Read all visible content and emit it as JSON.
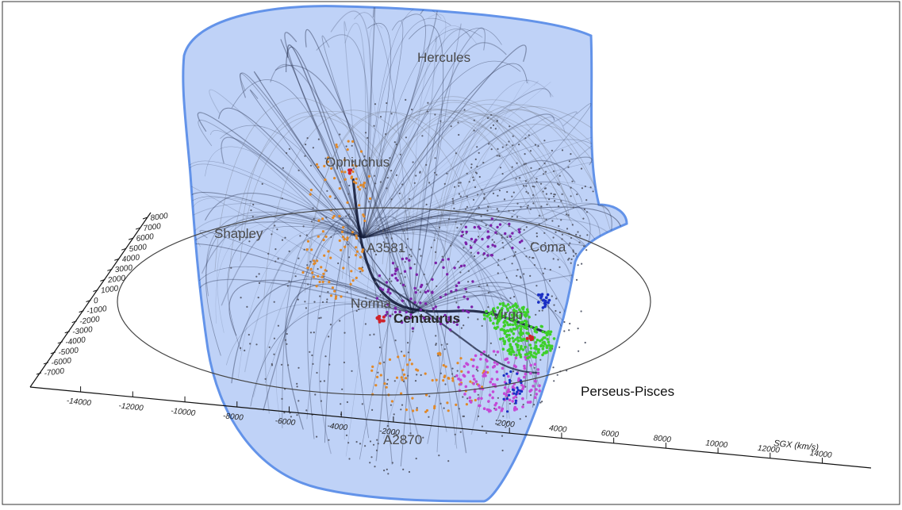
{
  "figure": {
    "region_labels": {
      "hercules": "Hercules",
      "ophiuchus": "Ophiuchus",
      "shapley": "Shapley",
      "a3581": "A3581",
      "coma": "Coma",
      "norma": "Norma",
      "centaurus": "Centaurus",
      "virgo": "Virgo",
      "perseus_pisces": "Perseus-Pisces",
      "a2870": "A2870"
    },
    "vertical_axis_ticks": [
      "8000",
      "7000",
      "6000",
      "5000",
      "4000",
      "3000",
      "2000",
      "1000",
      "0",
      "-1000",
      "-2000",
      "-3000",
      "-4000",
      "-5000",
      "-6000",
      "-7000"
    ],
    "left_axis_ticks": [
      "-14000",
      "-12000",
      "-10000",
      "-8000",
      "-6000",
      "-4000",
      "-2000"
    ],
    "right_axis_ticks": [
      "2000",
      "4000",
      "6000",
      "8000",
      "10000",
      "12000",
      "14000"
    ],
    "axis_title": "SGX (km/s)"
  },
  "colors": {
    "basin_fill": "#bcd0f7",
    "basin_edge": "#5b8ee8",
    "flow_lines": "#1a2340",
    "orange": "#e0892a",
    "purple": "#7a22a8",
    "magenta": "#c44ad6",
    "green": "#3ecf2a",
    "blue": "#1a2fc4",
    "red": "#d0222a",
    "gray_points": "#5a5f70"
  }
}
